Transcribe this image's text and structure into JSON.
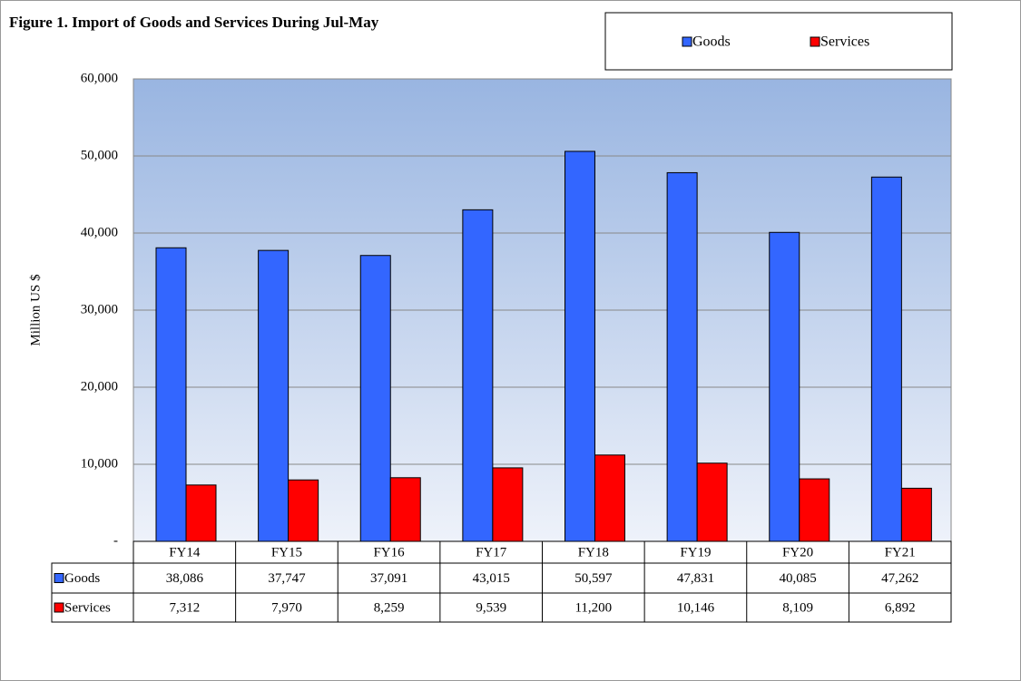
{
  "chart_data": {
    "type": "bar",
    "title": "Figure 1. Import of Goods and Services  During Jul-May",
    "y_label": "Million US $",
    "categories": [
      "FY14",
      "FY15",
      "FY16",
      "FY17",
      "FY18",
      "FY19",
      "FY20",
      "FY21"
    ],
    "series": [
      {
        "name": "Goods",
        "color": "#3366ff",
        "values": [
          38086,
          37747,
          37091,
          43015,
          50597,
          47831,
          40085,
          47262
        ],
        "value_labels": [
          "38,086",
          "37,747",
          "37,091",
          "43,015",
          "50,597",
          "47,831",
          "40,085",
          "47,262"
        ]
      },
      {
        "name": "Services",
        "color": "#ff0000",
        "values": [
          7312,
          7970,
          8259,
          9539,
          11200,
          10146,
          8109,
          6892
        ],
        "value_labels": [
          "7,312",
          "7,970",
          "8,259",
          "9,539",
          "11,200",
          "10,146",
          "8,109",
          "6,892"
        ]
      }
    ],
    "ylim": [
      0,
      60000
    ],
    "yticks": [
      {
        "value": 0,
        "label": "-"
      },
      {
        "value": 10000,
        "label": "10,000"
      },
      {
        "value": 20000,
        "label": "20,000"
      },
      {
        "value": 30000,
        "label": "30,000"
      },
      {
        "value": 40000,
        "label": "40,000"
      },
      {
        "value": 50000,
        "label": "50,000"
      },
      {
        "value": 60000,
        "label": "60,000"
      }
    ],
    "grid": true,
    "legend": "top-right"
  }
}
